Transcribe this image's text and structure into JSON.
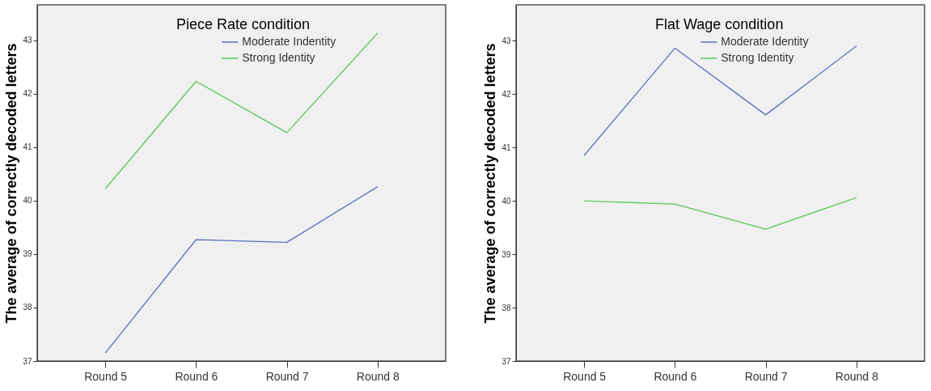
{
  "chart_data": [
    {
      "type": "line",
      "title": "Piece Rate condition",
      "ylabel": "The average of correctly decoded letters",
      "categories": [
        "Round 5",
        "Round 6",
        "Round 7",
        "Round 8"
      ],
      "ylim": [
        37,
        43.66
      ],
      "yticks": [
        37,
        38,
        39,
        40,
        41,
        42,
        43
      ],
      "grid": false,
      "legend": "top",
      "marker": "none",
      "line_style": "solid",
      "series": [
        {
          "name": "Moderate Indentity",
          "color": "#5a6fc0",
          "values": [
            37.15,
            39.27,
            39.22,
            40.26
          ]
        },
        {
          "name": "Strong Identity",
          "color": "#5ac85a",
          "values": [
            40.22,
            42.23,
            41.27,
            43.13
          ]
        }
      ]
    },
    {
      "type": "line",
      "title": "Flat Wage condition",
      "ylabel": "The average of correctly decoded letters",
      "categories": [
        "Round 5",
        "Round 6",
        "Round 7",
        "Round 8"
      ],
      "ylim": [
        37,
        43.67
      ],
      "yticks": [
        37,
        38,
        39,
        40,
        41,
        42,
        43
      ],
      "grid": false,
      "legend": "top",
      "marker": "none",
      "line_style": "solid",
      "series": [
        {
          "name": "Moderate Identity",
          "color": "#5a6fc0",
          "values": [
            40.85,
            42.86,
            41.61,
            42.9
          ]
        },
        {
          "name": "Strong Identity",
          "color": "#5ac85a",
          "values": [
            40.0,
            39.94,
            39.47,
            40.06
          ]
        }
      ]
    }
  ]
}
